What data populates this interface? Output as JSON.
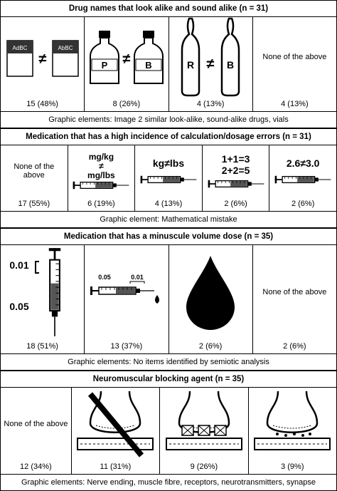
{
  "sections": [
    {
      "title": "Drug names that look alike and sound alike (n = 31)",
      "options": [
        {
          "image_text": [
            "AdBC",
            "≠",
            "AbBC"
          ],
          "result": "15 (48%)"
        },
        {
          "image_text": [
            "P",
            "≠",
            "B"
          ],
          "result": "8 (26%)"
        },
        {
          "image_text": [
            "R",
            "≠",
            "B"
          ],
          "result": "4 (13%)"
        },
        {
          "label": "None of the above",
          "result": "4 (13%)"
        }
      ],
      "footer": "Graphic elements: Image 2 similar look-alike, sound-alike drugs, vials"
    },
    {
      "title": "Medication that has a high incidence of calculation/dosage errors (n = 31)",
      "options": [
        {
          "label": "None of the above",
          "result": "17 (55%)"
        },
        {
          "image_text": [
            "mg/kg",
            "≠",
            "mg/lbs"
          ],
          "result": "6 (19%)"
        },
        {
          "image_text": [
            "kg≠lbs"
          ],
          "result": "4 (13%)"
        },
        {
          "image_text": [
            "1+1=3",
            "2+2=5"
          ],
          "result": "2 (6%)"
        },
        {
          "image_text": [
            "2.6≠3.0"
          ],
          "result": "2 (6%)"
        }
      ],
      "footer": "Graphic element: Mathematical mistake"
    },
    {
      "title": "Medication that has a minuscule volume dose (n = 35)",
      "options": [
        {
          "image_text": [
            "0.01",
            "0.05"
          ],
          "result": "18 (51%)"
        },
        {
          "image_text": [
            "0.05",
            "0.01"
          ],
          "result": "13 (37%)"
        },
        {
          "result": "2 (6%)"
        },
        {
          "label": "None of the above",
          "result": "2 (6%)"
        }
      ],
      "footer": "Graphic elements: No items identified by semiotic analysis"
    },
    {
      "title": "Neuromuscular blocking agent (n = 35)",
      "options": [
        {
          "label": "None of the above",
          "result": "12 (34%)"
        },
        {
          "result": "11 (31%)"
        },
        {
          "result": "9 (26%)"
        },
        {
          "result": "3 (9%)"
        }
      ],
      "footer": "Graphic elements: Nerve ending, muscle fibre, receptors, neurotransmitters, synapse"
    }
  ]
}
